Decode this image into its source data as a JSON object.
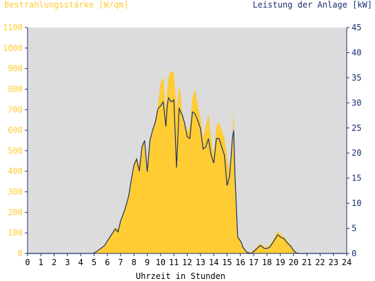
{
  "chart_data": {
    "type": "area",
    "left_title": "Bestrahlungsstärke [W/qm]",
    "right_title": "Leistung der Anlage [kW]",
    "xlabel": "Uhrzeit in Stunden",
    "x_ticks": [
      "0",
      "1",
      "2",
      "3",
      "4",
      "5",
      "6",
      "7",
      "8",
      "9",
      "10",
      "11",
      "12",
      "13",
      "14",
      "15",
      "16",
      "17",
      "18",
      "19",
      "20",
      "21",
      "22",
      "23",
      "24"
    ],
    "y_left_ticks": [
      "0",
      "100",
      "200",
      "300",
      "400",
      "500",
      "600",
      "700",
      "800",
      "900",
      "1000",
      "1100"
    ],
    "y_right_ticks": [
      "0",
      "5",
      "10",
      "15",
      "20",
      "25",
      "30",
      "35",
      "40",
      "45"
    ],
    "xlim": [
      0,
      24
    ],
    "ylim_left": [
      0,
      1100
    ],
    "ylim_right": [
      0,
      45
    ],
    "grid": false,
    "colors": {
      "plot_bg": "#dcdcdc",
      "area": "#ffcc33",
      "line": "#1a2f6e",
      "left_axis_text": "#ffcc33",
      "right_axis_text": "#1a2f6e",
      "axis": "#1a2f6e"
    },
    "series": [
      {
        "name": "Bestrahlungsstärke [W/qm]",
        "axis": "left",
        "style": "area",
        "x": [
          0,
          4.9,
          5.2,
          5.5,
          5.8,
          6.0,
          6.3,
          6.6,
          6.8,
          7.0,
          7.3,
          7.6,
          7.8,
          8.0,
          8.2,
          8.4,
          8.6,
          8.8,
          9.0,
          9.2,
          9.4,
          9.6,
          9.8,
          10.0,
          10.2,
          10.4,
          10.5,
          10.6,
          10.8,
          11.0,
          11.2,
          11.4,
          11.5,
          11.6,
          11.8,
          12.0,
          12.2,
          12.4,
          12.6,
          12.8,
          13.0,
          13.2,
          13.4,
          13.6,
          13.8,
          14.0,
          14.2,
          14.4,
          14.6,
          14.8,
          15.0,
          15.2,
          15.4,
          15.5,
          15.6,
          15.8,
          15.9,
          16.0,
          16.1,
          16.2,
          16.5,
          16.8,
          17.0,
          17.5,
          17.8,
          18.0,
          18.2,
          18.5,
          18.8,
          19.0,
          19.3,
          19.5,
          19.8,
          20.0,
          20.2,
          20.5,
          21.0,
          24
        ],
        "values": [
          0,
          0,
          10,
          25,
          40,
          60,
          90,
          130,
          120,
          160,
          220,
          280,
          360,
          440,
          470,
          430,
          520,
          560,
          420,
          560,
          600,
          650,
          720,
          830,
          860,
          700,
          800,
          860,
          890,
          880,
          700,
          820,
          780,
          700,
          640,
          590,
          620,
          760,
          800,
          720,
          660,
          560,
          620,
          680,
          560,
          480,
          620,
          640,
          600,
          560,
          470,
          400,
          560,
          690,
          400,
          80,
          80,
          70,
          55,
          30,
          10,
          5,
          15,
          50,
          30,
          35,
          40,
          70,
          110,
          95,
          80,
          65,
          40,
          20,
          5,
          0,
          0,
          0
        ]
      },
      {
        "name": "Leistung der Anlage [kW]",
        "axis": "right",
        "style": "line",
        "x": [
          0,
          4.9,
          5.2,
          5.5,
          5.8,
          6.0,
          6.3,
          6.6,
          6.8,
          7.0,
          7.3,
          7.6,
          7.8,
          8.0,
          8.2,
          8.4,
          8.6,
          8.8,
          9.0,
          9.2,
          9.4,
          9.6,
          9.8,
          10.0,
          10.2,
          10.4,
          10.5,
          10.6,
          10.8,
          11.0,
          11.2,
          11.4,
          11.5,
          11.6,
          11.8,
          12.0,
          12.2,
          12.4,
          12.6,
          12.8,
          13.0,
          13.2,
          13.4,
          13.6,
          13.8,
          14.0,
          14.2,
          14.4,
          14.6,
          14.8,
          15.0,
          15.2,
          15.4,
          15.5,
          15.6,
          15.8,
          15.9,
          16.0,
          16.1,
          16.2,
          16.5,
          16.8,
          17.0,
          17.5,
          17.8,
          18.0,
          18.2,
          18.5,
          18.8,
          19.0,
          19.3,
          19.5,
          19.8,
          20.0,
          20.2,
          20.5,
          21.0,
          24
        ],
        "values": [
          0,
          0,
          0.4,
          1,
          1.6,
          2.5,
          3.7,
          4.9,
          4.3,
          6.5,
          8.6,
          11.4,
          14.7,
          17.6,
          18.8,
          16.4,
          21.2,
          22.5,
          16.3,
          22.5,
          24.5,
          26.1,
          28.8,
          29.4,
          30.2,
          25.3,
          29.4,
          31.0,
          30.2,
          30.6,
          17.1,
          29.0,
          28.2,
          27.8,
          26.1,
          23.3,
          22.9,
          28.2,
          27.8,
          26.5,
          24.9,
          20.8,
          21.2,
          22.9,
          19.6,
          18.0,
          22.9,
          22.9,
          21.2,
          19.6,
          13.5,
          15.5,
          22.9,
          24.5,
          15.5,
          3.3,
          2.9,
          2.5,
          2.0,
          1.2,
          0.2,
          0,
          0.4,
          1.6,
          1.0,
          1.0,
          1.2,
          2.4,
          3.7,
          3.3,
          2.9,
          2.2,
          1.4,
          0.6,
          0.1,
          0,
          0,
          0
        ]
      }
    ]
  }
}
